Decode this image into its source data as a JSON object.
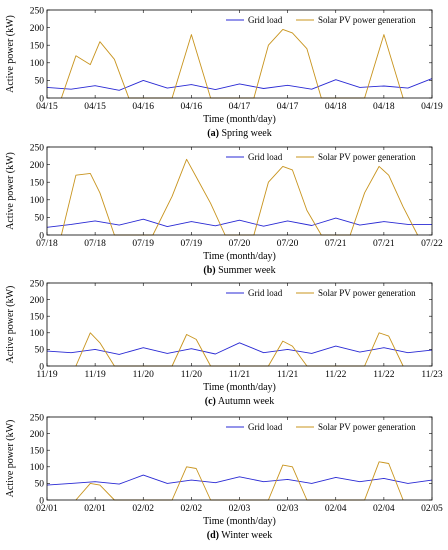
{
  "colors": {
    "grid_load": "#2a2ad4",
    "solar_pv": "#c8941e"
  },
  "chart_data": [
    {
      "type": "line",
      "caption_letter": "(a)",
      "caption_text": "Spring week",
      "xlabel": "Time (month/day)",
      "ylabel": "Active power (kW)",
      "ylim": [
        0,
        250
      ],
      "yticks": [
        "0",
        "50",
        "100",
        "150",
        "200",
        "250"
      ],
      "xlim": [
        0,
        4
      ],
      "xticks": [
        "04/15",
        "04/15",
        "04/16",
        "04/16",
        "04/17",
        "04/17",
        "04/18",
        "04/18",
        "04/19"
      ],
      "legend": "top-right",
      "series": [
        {
          "name": "Grid load",
          "x": [
            0,
            0.25,
            0.5,
            0.75,
            1,
            1.25,
            1.5,
            1.75,
            2,
            2.25,
            2.5,
            2.75,
            3,
            3.25,
            3.5,
            3.75,
            4
          ],
          "values": [
            30,
            25,
            35,
            22,
            50,
            28,
            38,
            24,
            40,
            27,
            36,
            25,
            52,
            30,
            34,
            28,
            55
          ]
        },
        {
          "name": "Solar PV power generation",
          "x": [
            0.15,
            0.3,
            0.45,
            0.55,
            0.7,
            0.85,
            1.3,
            1.5,
            1.7,
            2.15,
            2.3,
            2.45,
            2.55,
            2.7,
            2.85,
            3.3,
            3.5,
            3.7
          ],
          "values": [
            0,
            120,
            95,
            160,
            110,
            0,
            0,
            180,
            0,
            0,
            150,
            195,
            185,
            140,
            0,
            0,
            180,
            0
          ]
        }
      ]
    },
    {
      "type": "line",
      "caption_letter": "(b)",
      "caption_text": "Summer week",
      "xlabel": "Time (month/day)",
      "ylabel": "Active power (kW)",
      "ylim": [
        0,
        250
      ],
      "yticks": [
        "0",
        "50",
        "100",
        "150",
        "200",
        "250"
      ],
      "xlim": [
        0,
        4
      ],
      "xticks": [
        "07/18",
        "07/18",
        "07/19",
        "07/19",
        "07/20",
        "07/20",
        "07/21",
        "07/21",
        "07/22"
      ],
      "legend": "top-right",
      "series": [
        {
          "name": "Grid load",
          "x": [
            0,
            0.25,
            0.5,
            0.75,
            1,
            1.25,
            1.5,
            1.75,
            2,
            2.25,
            2.5,
            2.75,
            3,
            3.25,
            3.5,
            3.75,
            4
          ],
          "values": [
            22,
            30,
            40,
            28,
            45,
            24,
            38,
            26,
            42,
            25,
            40,
            27,
            48,
            28,
            38,
            30,
            30
          ]
        },
        {
          "name": "Solar PV power generation",
          "x": [
            0.15,
            0.3,
            0.45,
            0.55,
            0.7,
            1.1,
            1.3,
            1.45,
            1.55,
            1.7,
            1.85,
            2.15,
            2.3,
            2.45,
            2.55,
            2.7,
            2.85,
            3.15,
            3.3,
            3.45,
            3.55,
            3.7,
            3.85
          ],
          "values": [
            0,
            170,
            175,
            120,
            0,
            0,
            110,
            215,
            165,
            90,
            0,
            0,
            150,
            195,
            185,
            70,
            0,
            0,
            120,
            195,
            170,
            80,
            0
          ]
        }
      ]
    },
    {
      "type": "line",
      "caption_letter": "(c)",
      "caption_text": "Autumn week",
      "xlabel": "Time (month/day)",
      "ylabel": "Active power (kW)",
      "ylim": [
        0,
        250
      ],
      "yticks": [
        "0",
        "50",
        "100",
        "150",
        "200",
        "250"
      ],
      "xlim": [
        0,
        4
      ],
      "xticks": [
        "11/19",
        "11/19",
        "11/20",
        "11/20",
        "11/21",
        "11/21",
        "11/22",
        "11/22",
        "11/23"
      ],
      "legend": "top-right",
      "series": [
        {
          "name": "Grid load",
          "x": [
            0,
            0.25,
            0.5,
            0.75,
            1,
            1.25,
            1.5,
            1.75,
            2,
            2.25,
            2.5,
            2.75,
            3,
            3.25,
            3.5,
            3.75,
            4
          ],
          "values": [
            45,
            40,
            50,
            35,
            55,
            38,
            52,
            36,
            70,
            40,
            50,
            38,
            60,
            42,
            55,
            40,
            48
          ]
        },
        {
          "name": "Solar PV power generation",
          "x": [
            0.3,
            0.45,
            0.55,
            0.7,
            1.3,
            1.45,
            1.55,
            1.7,
            2.3,
            2.45,
            2.55,
            2.7,
            3.3,
            3.45,
            3.55,
            3.7
          ],
          "values": [
            0,
            100,
            70,
            0,
            0,
            95,
            80,
            0,
            0,
            75,
            60,
            0,
            0,
            100,
            90,
            0
          ]
        }
      ]
    },
    {
      "type": "line",
      "caption_letter": "(d)",
      "caption_text": "Winter week",
      "xlabel": "Time (month/day)",
      "ylabel": "Active power (kW)",
      "ylim": [
        0,
        250
      ],
      "yticks": [
        "0",
        "50",
        "100",
        "150",
        "200",
        "250"
      ],
      "xlim": [
        0,
        4
      ],
      "xticks": [
        "02/01",
        "02/01",
        "02/02",
        "02/02",
        "02/03",
        "02/03",
        "02/04",
        "02/04",
        "02/05"
      ],
      "legend": "top-right",
      "series": [
        {
          "name": "Grid load",
          "x": [
            0,
            0.25,
            0.5,
            0.75,
            1,
            1.25,
            1.5,
            1.75,
            2,
            2.25,
            2.5,
            2.75,
            3,
            3.25,
            3.5,
            3.75,
            4
          ],
          "values": [
            45,
            50,
            55,
            48,
            75,
            50,
            60,
            52,
            70,
            55,
            62,
            50,
            68,
            55,
            65,
            50,
            60
          ]
        },
        {
          "name": "Solar PV power generation",
          "x": [
            0.3,
            0.45,
            0.55,
            0.7,
            1.3,
            1.45,
            1.55,
            1.7,
            2.3,
            2.45,
            2.55,
            2.7,
            3.3,
            3.45,
            3.55,
            3.7
          ],
          "values": [
            0,
            50,
            45,
            0,
            0,
            100,
            95,
            0,
            0,
            105,
            100,
            0,
            0,
            115,
            110,
            0
          ]
        }
      ]
    }
  ]
}
